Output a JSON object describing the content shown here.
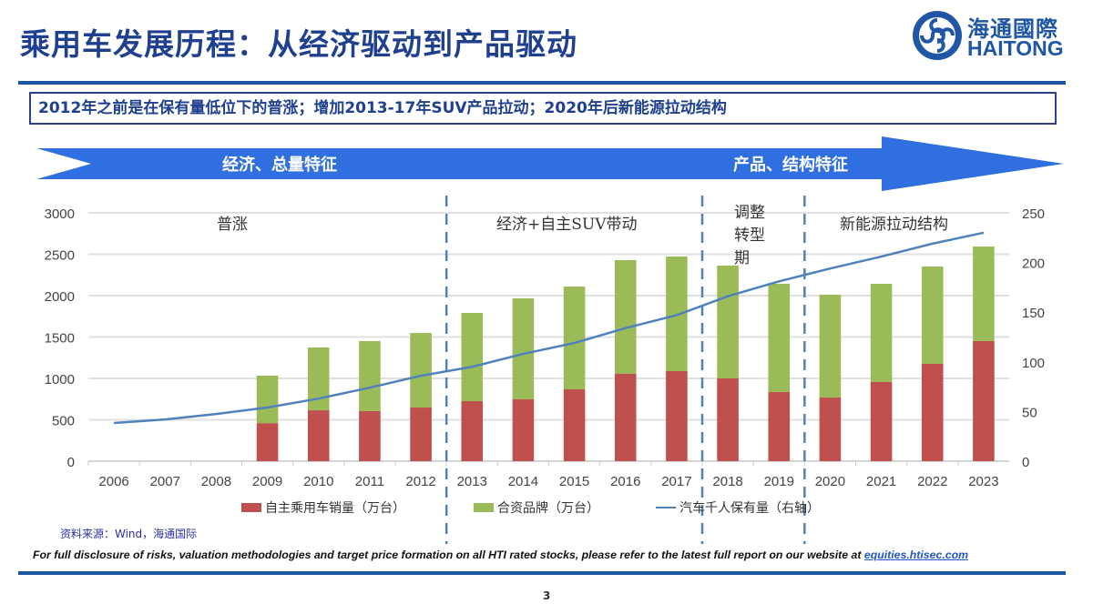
{
  "header": {
    "title": "乘用车发展历程：从经济驱动到产品驱动",
    "logo_cn": "海通國際",
    "logo_en": "HAITONG"
  },
  "summary": "2012年之前是在保有量低位下的普涨；增加2013-17年SUV产品拉动；2020年后新能源拉动结构",
  "banner": {
    "left_label": "经济、总量特征",
    "right_label": "产品、结构特征",
    "color": "#2f6fe0"
  },
  "chart_data": {
    "type": "bar",
    "stacked": true,
    "categories": [
      "2006",
      "2007",
      "2008",
      "2009",
      "2010",
      "2011",
      "2012",
      "2013",
      "2014",
      "2015",
      "2016",
      "2017",
      "2018",
      "2019",
      "2020",
      "2021",
      "2022",
      "2023"
    ],
    "series": [
      {
        "name": "自主乘用车销量（万台）",
        "type": "bar",
        "axis": "left",
        "color": "#c0504d",
        "values": [
          null,
          null,
          null,
          460,
          615,
          605,
          648,
          725,
          747,
          868,
          1055,
          1088,
          1000,
          835,
          769,
          956,
          1176,
          1451
        ]
      },
      {
        "name": "合资品牌（万台）",
        "type": "bar",
        "axis": "left",
        "color": "#9bbb59",
        "values": [
          null,
          null,
          null,
          573,
          759,
          846,
          901,
          1066,
          1220,
          1242,
          1374,
          1385,
          1363,
          1308,
          1242,
          1187,
          1176,
          1142
        ]
      },
      {
        "name": "汽车千人保有量（右轴）",
        "type": "line",
        "axis": "right",
        "color": "#4f81bd",
        "values": [
          38.5,
          42,
          47.5,
          54,
          63,
          74,
          86,
          95,
          108,
          119,
          134,
          147,
          166,
          181,
          194,
          206,
          219,
          230
        ]
      }
    ],
    "y_left": {
      "ylim": [
        0,
        3000
      ],
      "ticks": [
        "0",
        "500",
        "1000",
        "1500",
        "2000",
        "2500",
        "3000"
      ]
    },
    "y_right": {
      "ylim": [
        0,
        250
      ],
      "ticks": [
        "0",
        "50",
        "100",
        "150",
        "200",
        "250"
      ]
    },
    "grid": true,
    "legend": "bottom",
    "phase_dividers_between": [
      [
        "2012",
        "2013"
      ],
      [
        "2017",
        "2018"
      ],
      [
        "2019",
        "2020"
      ]
    ],
    "annotations": [
      "普涨",
      "经济+自主SUV带动",
      "调整转型期",
      "新能源拉动结构"
    ]
  },
  "annotations_lines": {
    "adjust": [
      "调整",
      "转型",
      "期"
    ]
  },
  "source": "资料来源：Wind，海通国际",
  "footer": {
    "disclaimer": "For full disclosure of risks, valuation methodologies and target price formation on all HTI rated stocks, please refer to the latest full report on our website at ",
    "link": "equities.htisec.com",
    "page": "3"
  }
}
